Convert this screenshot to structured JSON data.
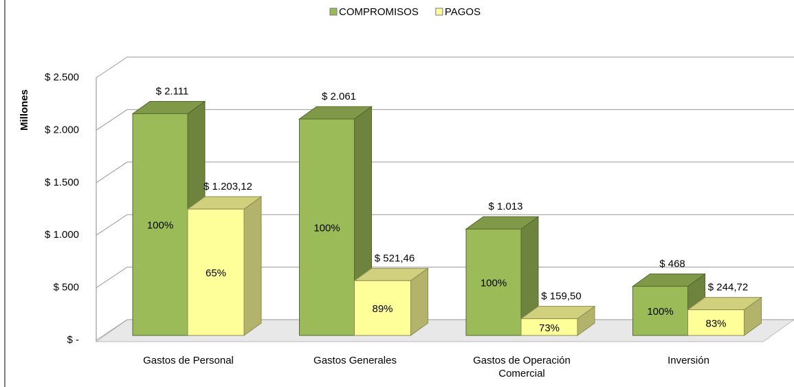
{
  "chart_data": {
    "type": "bar3d",
    "y_label": "Millones",
    "categories": [
      "Gastos de Personal",
      "Gastos Generales",
      "Gastos de Operación Comercial",
      "Inversión"
    ],
    "series": [
      {
        "name": "COMPROMISOS",
        "color": "#9bbb59",
        "values": [
          2111,
          2061,
          1013,
          468
        ],
        "value_labels": [
          "$ 2.111",
          "$ 2.061",
          "$ 1.013",
          "$ 468"
        ],
        "inner_labels": [
          "100%",
          "100%",
          "100%",
          "100%"
        ]
      },
      {
        "name": "PAGOS",
        "color": "#ffff99",
        "values": [
          1203.12,
          521.46,
          159.5,
          244.72
        ],
        "value_labels": [
          "$ 1.203,12",
          "$ 521,46",
          "$ 159,50",
          "$ 244,72"
        ],
        "inner_labels": [
          "65%",
          "89%",
          "73%",
          "83%"
        ]
      }
    ],
    "ylim": [
      0,
      2500
    ],
    "yticks": [
      {
        "value": 0,
        "label": "$ -"
      },
      {
        "value": 500,
        "label": "$ 500"
      },
      {
        "value": 1000,
        "label": "$ 1.000"
      },
      {
        "value": 1500,
        "label": "$ 1.500"
      },
      {
        "value": 2000,
        "label": "$ 2.000"
      },
      {
        "value": 2500,
        "label": "$ 2.500"
      }
    ],
    "grid": true,
    "legend": "top"
  }
}
